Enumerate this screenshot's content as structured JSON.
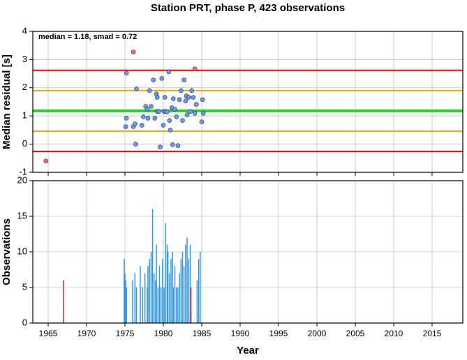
{
  "chart_data": [
    {
      "type": "scatter",
      "title": "Station PRT, phase P, 423 observations",
      "ylabel": "Median residual [s]",
      "annotation": "median = 1.18, smad = 0.72",
      "xlim": [
        1963,
        2019
      ],
      "xticks": [
        1965,
        1970,
        1975,
        1980,
        1985,
        1990,
        1995,
        2000,
        2005,
        2010,
        2015
      ],
      "ylim": [
        -1,
        4
      ],
      "yticks": [
        -1,
        0,
        1,
        2,
        3,
        4
      ],
      "grid": true,
      "hlines": [
        {
          "value": 2.62,
          "color": "#ff0000"
        },
        {
          "value": 1.9,
          "color": "#ffa500"
        },
        {
          "value": 1.18,
          "color": "#00e000"
        },
        {
          "value": 0.46,
          "color": "#ffa500"
        },
        {
          "value": -0.26,
          "color": "#ff0000"
        }
      ],
      "series": [
        {
          "color": "#6699ff",
          "x": [
            1975.2,
            1975.2,
            1975.1,
            1976.1,
            1976.3,
            1976.5,
            1976.4,
            1977.2,
            1977.4,
            1977.7,
            1977.9,
            1978.0,
            1978.2,
            1978.4,
            1978.7,
            1978.9,
            1979.1,
            1979.2,
            1979.2,
            1979.4,
            1979.6,
            1979.8,
            1980.0,
            1980.1,
            1980.2,
            1980.3,
            1980.5,
            1980.7,
            1980.8,
            1980.9,
            1981.1,
            1981.2,
            1981.3,
            1981.5,
            1981.7,
            1981.9,
            1982.1,
            1982.3,
            1982.5,
            1982.7,
            1982.9,
            1983.0,
            1983.1,
            1983.3,
            1983.5,
            1983.7,
            1983.9,
            1984.1,
            1984.3,
            1985.0,
            1985.1,
            1985.2
          ],
          "values": [
            2.52,
            0.92,
            0.62,
            0.62,
            0.72,
            1.96,
            0.0,
            0.67,
            0.97,
            1.34,
            1.24,
            0.92,
            1.9,
            1.34,
            2.28,
            0.92,
            1.78,
            1.16,
            1.66,
            1.16,
            -0.1,
            2.33,
            0.67,
            1.16,
            1.66,
            1.16,
            1.14,
            2.57,
            0.84,
            0.5,
            1.29,
            -0.02,
            1.61,
            1.24,
            0.97,
            -0.05,
            1.58,
            1.9,
            0.84,
            2.28,
            1.53,
            1.71,
            1.04,
            1.66,
            1.16,
            1.9,
            1.66,
            1.09,
            1.41,
            0.79,
            1.58,
            1.09
          ]
        },
        {
          "color": "#ff6666",
          "x": [
            1964.7,
            1976.1,
            1984.1
          ],
          "values": [
            -0.6,
            3.27,
            2.67
          ]
        }
      ]
    },
    {
      "type": "bar",
      "xlabel": "Year",
      "ylabel": "Observations",
      "xlim": [
        1963,
        2019
      ],
      "xticks": [
        1965,
        1970,
        1975,
        1980,
        1985,
        1990,
        1995,
        2000,
        2005,
        2010,
        2015
      ],
      "ylim": [
        0,
        20
      ],
      "yticks": [
        0,
        5,
        10,
        15,
        20
      ],
      "grid": true,
      "series": [
        {
          "color": "#3399e6",
          "x": [
            1974.9,
            1975.0,
            1975.1,
            1975.2,
            1976.0,
            1976.3,
            1976.5,
            1977.0,
            1977.3,
            1977.6,
            1977.9,
            1978.0,
            1978.2,
            1978.4,
            1978.6,
            1978.8,
            1979.0,
            1979.1,
            1979.3,
            1979.5,
            1979.7,
            1979.9,
            1980.1,
            1980.3,
            1980.5,
            1980.6,
            1980.8,
            1981.0,
            1981.2,
            1981.3,
            1981.5,
            1981.7,
            1981.9,
            1982.1,
            1982.3,
            1982.5,
            1982.7,
            1982.9,
            1983.1,
            1983.3,
            1983.5,
            1984.4,
            1984.6,
            1984.8
          ],
          "values": [
            9,
            7,
            6,
            5,
            6,
            7,
            5,
            8,
            5,
            7,
            5,
            8,
            9,
            10,
            16,
            7,
            6,
            11,
            5,
            8,
            5,
            9,
            5,
            14,
            11,
            10,
            7,
            9,
            10,
            5,
            8,
            5,
            5,
            7,
            9,
            10,
            8,
            11,
            12,
            9,
            11,
            6,
            9,
            10
          ]
        },
        {
          "color": "#dd2222",
          "x": [
            1967,
            1983.6
          ],
          "values": [
            6,
            5
          ]
        }
      ]
    }
  ]
}
